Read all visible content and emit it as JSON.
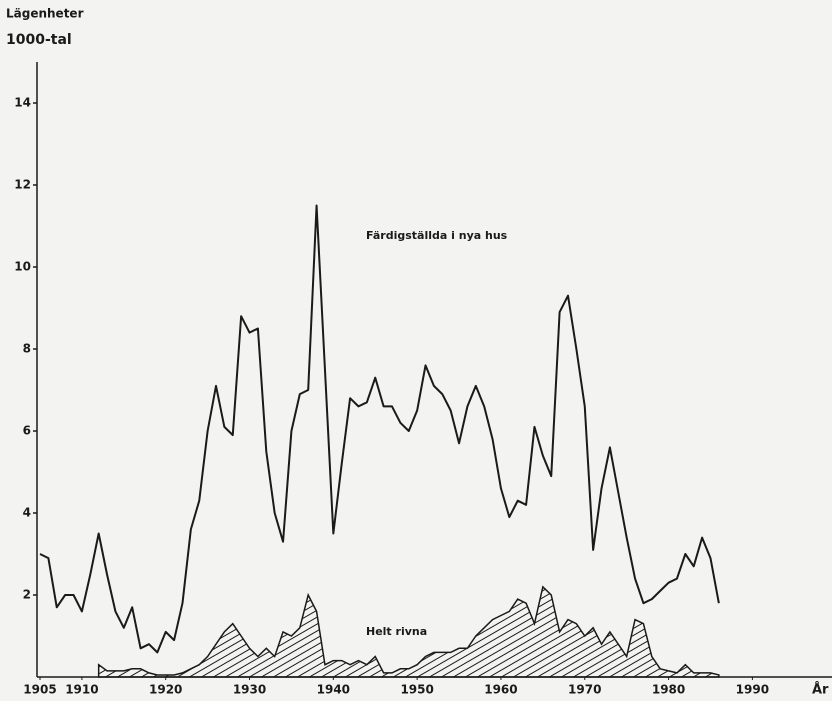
{
  "chart_data": {
    "type": "line",
    "y_label": [
      "Lägenheter",
      "1000-tal"
    ],
    "x_label": "År",
    "x": [
      1905,
      1906,
      1907,
      1908,
      1909,
      1910,
      1911,
      1912,
      1913,
      1914,
      1915,
      1916,
      1917,
      1918,
      1919,
      1920,
      1921,
      1922,
      1923,
      1924,
      1925,
      1926,
      1927,
      1928,
      1929,
      1930,
      1931,
      1932,
      1933,
      1934,
      1935,
      1936,
      1937,
      1938,
      1939,
      1940,
      1941,
      1942,
      1943,
      1944,
      1945,
      1946,
      1947,
      1948,
      1949,
      1950,
      1951,
      1952,
      1953,
      1954,
      1955,
      1956,
      1957,
      1958,
      1959,
      1960,
      1961,
      1962,
      1963,
      1964,
      1965,
      1966,
      1967,
      1968,
      1969,
      1970,
      1971,
      1972,
      1973,
      1974,
      1975,
      1976,
      1977,
      1978,
      1979,
      1980,
      1981,
      1982,
      1983,
      1984,
      1985,
      1986
    ],
    "series": [
      {
        "name": "Färdigställda i nya hus",
        "color": "#1a1a1a",
        "fill": "none",
        "values": [
          3.0,
          2.9,
          1.7,
          2.0,
          2.0,
          1.6,
          2.5,
          3.5,
          2.5,
          1.6,
          1.2,
          1.7,
          0.7,
          0.8,
          0.6,
          1.1,
          0.9,
          1.8,
          3.6,
          4.3,
          6.0,
          7.1,
          6.1,
          5.9,
          8.8,
          8.4,
          8.5,
          5.5,
          4.0,
          3.3,
          6.0,
          6.9,
          7.0,
          11.5,
          7.5,
          3.5,
          5.2,
          6.8,
          6.6,
          6.7,
          7.3,
          6.6,
          6.6,
          6.2,
          6.0,
          6.5,
          7.6,
          7.1,
          6.9,
          6.5,
          5.7,
          6.6,
          7.1,
          6.6,
          5.8,
          4.6,
          3.9,
          4.3,
          4.2,
          6.1,
          5.4,
          4.9,
          8.9,
          9.3,
          8.0,
          6.6,
          3.1,
          4.6,
          5.6,
          4.5,
          3.4,
          2.4,
          1.8,
          1.9,
          2.1,
          2.3,
          2.4,
          3.0,
          2.7,
          3.4,
          2.9,
          1.8
        ]
      },
      {
        "name": "Helt rivna",
        "color": "#1a1a1a",
        "fill": "hatch",
        "values": [
          null,
          null,
          null,
          null,
          null,
          null,
          null,
          0.3,
          0.15,
          0.15,
          0.15,
          0.2,
          0.2,
          0.1,
          0.05,
          0.05,
          0.05,
          0.1,
          0.2,
          0.3,
          0.5,
          0.8,
          1.1,
          1.3,
          1.0,
          0.7,
          0.5,
          0.7,
          0.5,
          1.1,
          1.0,
          1.2,
          2.0,
          1.6,
          0.3,
          0.4,
          0.4,
          0.3,
          0.4,
          0.3,
          0.5,
          0.1,
          0.1,
          0.2,
          0.2,
          0.3,
          0.5,
          0.6,
          0.6,
          0.6,
          0.7,
          0.7,
          1.0,
          1.2,
          1.4,
          1.5,
          1.6,
          1.9,
          1.8,
          1.3,
          2.2,
          2.0,
          1.1,
          1.4,
          1.3,
          1.0,
          1.2,
          0.8,
          1.1,
          0.8,
          0.5,
          1.4,
          1.3,
          0.5,
          0.2,
          0.15,
          0.1,
          0.3,
          0.1,
          0.1,
          0.1,
          0.05
        ]
      }
    ],
    "xlim": [
      1905,
      1999.5
    ],
    "xticks": [
      1905,
      1910,
      1920,
      1930,
      1940,
      1950,
      1960,
      1970,
      1980,
      1990
    ],
    "ylim": [
      0,
      15
    ],
    "yticks": [
      2,
      4,
      6,
      8,
      10,
      12,
      14
    ]
  }
}
